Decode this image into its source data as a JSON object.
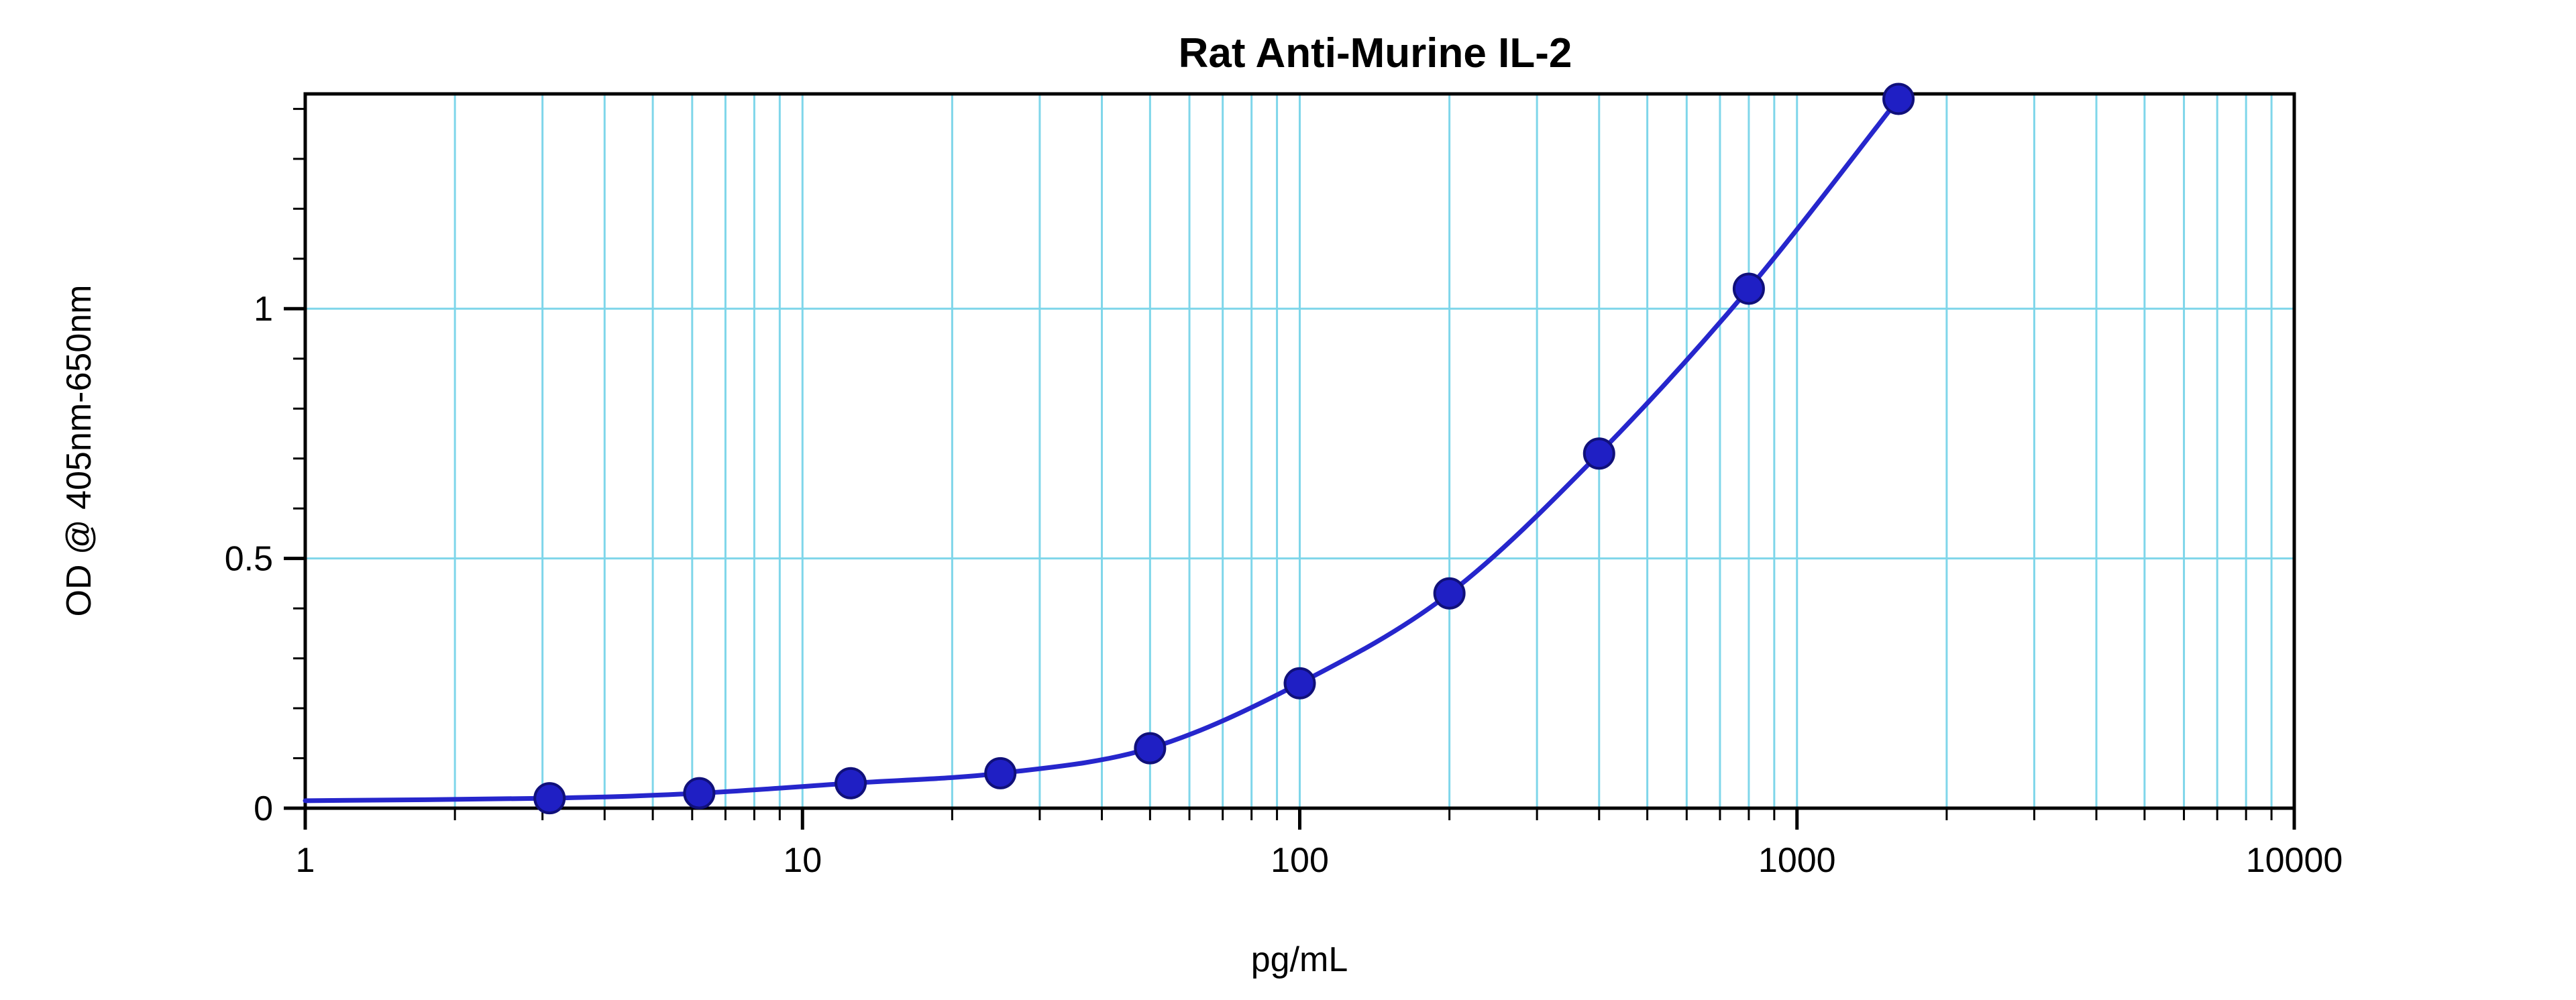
{
  "chart_data": {
    "type": "line",
    "title": "Rat Anti-Murine IL-2",
    "xlabel": "pg/mL",
    "ylabel": "OD @ 405nm-650nm",
    "x_scale": "log",
    "xlim": [
      1,
      10000
    ],
    "ylim": [
      0,
      1.43
    ],
    "x_major_ticks": [
      1,
      10,
      100,
      1000,
      10000
    ],
    "x_tick_labels": [
      "1",
      "10",
      "100",
      "1000",
      "10000"
    ],
    "y_major_ticks": [
      0,
      0.5,
      1
    ],
    "y_tick_labels": [
      "0",
      "0.5",
      "1"
    ],
    "y_minor_step": 0.1,
    "grid": true,
    "legend": "none",
    "colors": {
      "grid": "#7fd6ea",
      "line": "#2626cc",
      "marker_fill": "#1f1fc4",
      "marker_stroke": "#10107a",
      "axis": "#000000",
      "background": "#ffffff"
    },
    "baseline_start": {
      "x": 1,
      "y": 0.015
    },
    "series": [
      {
        "name": "Rat Anti-Murine IL-2 standard curve",
        "points": [
          {
            "x": 3.1,
            "y": 0.02
          },
          {
            "x": 6.2,
            "y": 0.03
          },
          {
            "x": 12.5,
            "y": 0.05
          },
          {
            "x": 25,
            "y": 0.07
          },
          {
            "x": 50,
            "y": 0.12
          },
          {
            "x": 100,
            "y": 0.25
          },
          {
            "x": 200,
            "y": 0.43
          },
          {
            "x": 400,
            "y": 0.71
          },
          {
            "x": 800,
            "y": 1.04
          },
          {
            "x": 1600,
            "y": 1.42
          }
        ]
      }
    ]
  }
}
